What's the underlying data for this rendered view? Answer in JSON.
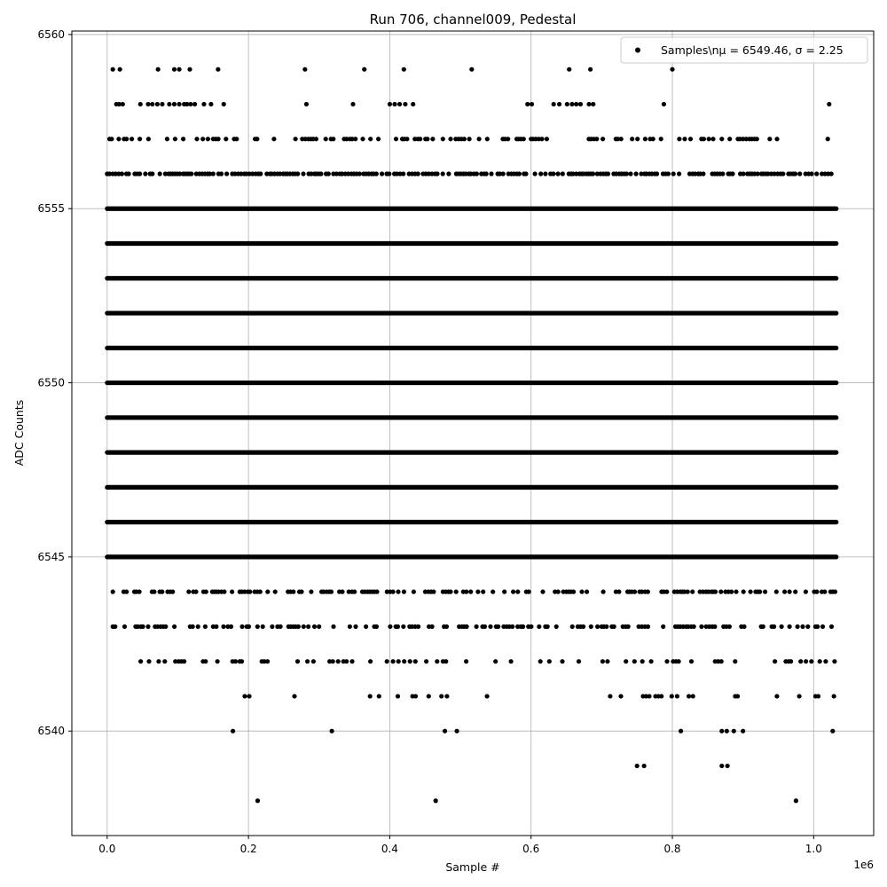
{
  "chart_data": {
    "type": "scatter",
    "title": "Run 706, channel009, Pedestal",
    "xlabel": "Sample #",
    "ylabel": "ADC Counts",
    "x_offset_label": "1e6",
    "xlim": [
      -50000,
      1085000
    ],
    "ylim": [
      6537,
      6560.1
    ],
    "x_ticks": [
      0.0,
      0.2,
      0.4,
      0.6,
      0.8,
      1.0
    ],
    "x_tick_labels": [
      "0.0",
      "0.2",
      "0.4",
      "0.6",
      "0.8",
      "1.0"
    ],
    "y_ticks": [
      6540,
      6545,
      6550,
      6555,
      6560
    ],
    "y_tick_labels": [
      "6540",
      "6545",
      "6550",
      "6555",
      "6560"
    ],
    "grid": true,
    "legend_position": "top-right",
    "series": [
      {
        "name": "Samples\\nμ = 6549.46, σ = 2.25",
        "color": "#000000",
        "marker": "circle",
        "mean": 6549.46,
        "sigma": 2.25,
        "dense_rows": [
          {
            "y": 6554,
            "x_range": [
              0,
              1032000
            ]
          },
          {
            "y": 6553,
            "x_range": [
              0,
              1032000
            ]
          },
          {
            "y": 6552,
            "x_range": [
              0,
              1032000
            ]
          },
          {
            "y": 6551,
            "x_range": [
              0,
              1032000
            ]
          },
          {
            "y": 6550,
            "x_range": [
              0,
              1032000
            ]
          },
          {
            "y": 6549,
            "x_range": [
              0,
              1032000
            ]
          },
          {
            "y": 6548,
            "x_range": [
              0,
              1032000
            ]
          },
          {
            "y": 6547,
            "x_range": [
              0,
              1032000
            ]
          },
          {
            "y": 6546,
            "x_range": [
              0,
              1032000
            ]
          },
          {
            "y": 6545,
            "x_range": [
              0,
              1032000
            ]
          },
          {
            "y": 6555,
            "x_range": [
              0,
              1032000
            ]
          }
        ],
        "sparse_rows": [
          {
            "y": 6556,
            "density": 0.75,
            "x_range": [
              0,
              1032000
            ]
          },
          {
            "y": 6557,
            "density": 0.45,
            "x_range": [
              0,
              950000
            ]
          },
          {
            "y": 6544,
            "density": 0.55,
            "x_range": [
              8000,
              1032000
            ]
          },
          {
            "y": 6543,
            "density": 0.45,
            "x_range": [
              8000,
              1032000
            ]
          },
          {
            "y": 6542,
            "density": 0.3,
            "x_range": [
              35000,
              1032000
            ]
          },
          {
            "y": 6541,
            "density": 0.14,
            "x_range": [
              165000,
              1032000
            ]
          }
        ],
        "isolated_points": [
          {
            "x": 8000,
            "y": 6559
          },
          {
            "x": 18000,
            "y": 6559
          },
          {
            "x": 72000,
            "y": 6559
          },
          {
            "x": 95000,
            "y": 6559
          },
          {
            "x": 102000,
            "y": 6559
          },
          {
            "x": 117000,
            "y": 6559
          },
          {
            "x": 157000,
            "y": 6559
          },
          {
            "x": 280000,
            "y": 6559
          },
          {
            "x": 364000,
            "y": 6559
          },
          {
            "x": 420000,
            "y": 6559
          },
          {
            "x": 516000,
            "y": 6559
          },
          {
            "x": 654000,
            "y": 6559
          },
          {
            "x": 684000,
            "y": 6559
          },
          {
            "x": 800000,
            "y": 6559
          },
          {
            "x": 13000,
            "y": 6558
          },
          {
            "x": 17000,
            "y": 6558
          },
          {
            "x": 22000,
            "y": 6558
          },
          {
            "x": 47000,
            "y": 6558
          },
          {
            "x": 58000,
            "y": 6558
          },
          {
            "x": 64000,
            "y": 6558
          },
          {
            "x": 71000,
            "y": 6558
          },
          {
            "x": 78000,
            "y": 6558
          },
          {
            "x": 88000,
            "y": 6558
          },
          {
            "x": 95000,
            "y": 6558
          },
          {
            "x": 102000,
            "y": 6558
          },
          {
            "x": 109000,
            "y": 6558
          },
          {
            "x": 113000,
            "y": 6558
          },
          {
            "x": 118000,
            "y": 6558
          },
          {
            "x": 124000,
            "y": 6558
          },
          {
            "x": 137000,
            "y": 6558
          },
          {
            "x": 147000,
            "y": 6558
          },
          {
            "x": 165000,
            "y": 6558
          },
          {
            "x": 282000,
            "y": 6558
          },
          {
            "x": 348000,
            "y": 6558
          },
          {
            "x": 400000,
            "y": 6558
          },
          {
            "x": 407000,
            "y": 6558
          },
          {
            "x": 414000,
            "y": 6558
          },
          {
            "x": 422000,
            "y": 6558
          },
          {
            "x": 433000,
            "y": 6558
          },
          {
            "x": 595000,
            "y": 6558
          },
          {
            "x": 601000,
            "y": 6558
          },
          {
            "x": 632000,
            "y": 6558
          },
          {
            "x": 640000,
            "y": 6558
          },
          {
            "x": 651000,
            "y": 6558
          },
          {
            "x": 658000,
            "y": 6558
          },
          {
            "x": 664000,
            "y": 6558
          },
          {
            "x": 670000,
            "y": 6558
          },
          {
            "x": 682000,
            "y": 6558
          },
          {
            "x": 688000,
            "y": 6558
          },
          {
            "x": 788000,
            "y": 6558
          },
          {
            "x": 1022000,
            "y": 6558
          },
          {
            "x": 1020000,
            "y": 6557
          },
          {
            "x": 178000,
            "y": 6540
          },
          {
            "x": 318000,
            "y": 6540
          },
          {
            "x": 478000,
            "y": 6540
          },
          {
            "x": 495000,
            "y": 6540
          },
          {
            "x": 812000,
            "y": 6540
          },
          {
            "x": 870000,
            "y": 6540
          },
          {
            "x": 877000,
            "y": 6540
          },
          {
            "x": 887000,
            "y": 6540
          },
          {
            "x": 900000,
            "y": 6540
          },
          {
            "x": 1027000,
            "y": 6540
          },
          {
            "x": 750000,
            "y": 6539
          },
          {
            "x": 760000,
            "y": 6539
          },
          {
            "x": 870000,
            "y": 6539
          },
          {
            "x": 878000,
            "y": 6539
          },
          {
            "x": 213000,
            "y": 6538
          },
          {
            "x": 465000,
            "y": 6538
          },
          {
            "x": 975000,
            "y": 6538
          }
        ]
      }
    ]
  }
}
